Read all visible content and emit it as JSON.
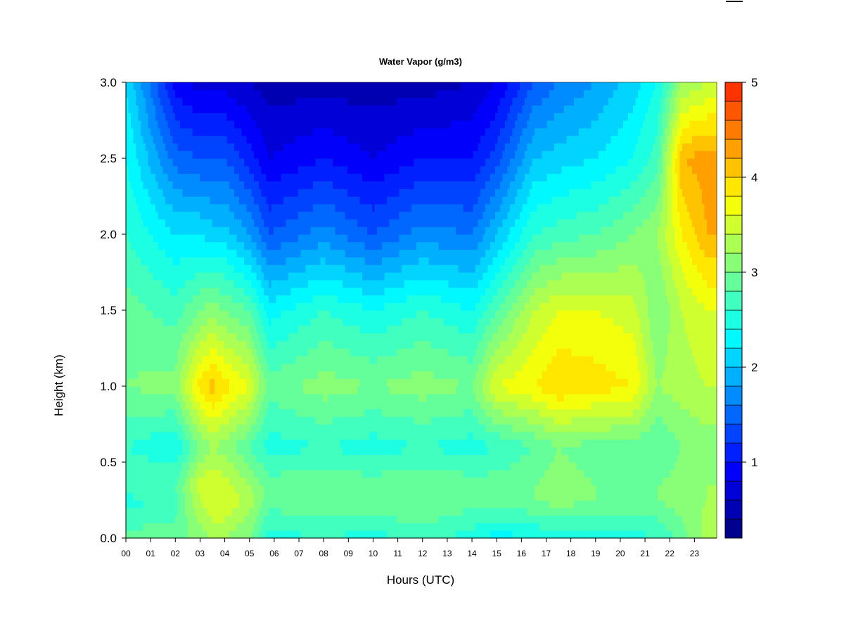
{
  "chart_data": {
    "type": "heatmap",
    "title": "Water Vapor (g/m3)",
    "xlabel": "Hours (UTC)",
    "ylabel": "Height (km)",
    "x_ticks": [
      "00",
      "01",
      "02",
      "03",
      "04",
      "05",
      "06",
      "07",
      "08",
      "09",
      "10",
      "11",
      "12",
      "13",
      "14",
      "15",
      "16",
      "17",
      "18",
      "19",
      "20",
      "21",
      "22",
      "23"
    ],
    "y_ticks": [
      "0.0",
      "0.5",
      "1.0",
      "1.5",
      "2.0",
      "2.5",
      "3.0"
    ],
    "xlim": [
      0,
      23.9
    ],
    "ylim": [
      0,
      3.0
    ],
    "colorbar": {
      "range": [
        0.2,
        5.0
      ],
      "step": 0.2,
      "ticks": [
        "1",
        "2",
        "3",
        "4",
        "5"
      ],
      "colors": [
        "#00008f",
        "#0000b3",
        "#0000d7",
        "#0000fb",
        "#0020ff",
        "#0044ff",
        "#0068ff",
        "#008cff",
        "#00b0ff",
        "#00d4ff",
        "#00f8ff",
        "#1cffe3",
        "#40ffbf",
        "#64ff9b",
        "#88ff77",
        "#acff53",
        "#d0ff2f",
        "#f4ff0b",
        "#ffe700",
        "#ffc300",
        "#ff9f00",
        "#ff7b00",
        "#ff5700",
        "#ff3300",
        "#ff0f00",
        "#eb0000",
        "#c70000",
        "#a30000",
        "#7f0000"
      ]
    },
    "grid": false,
    "field_description_values": {
      "hours": [
        0,
        2,
        3,
        3.5,
        4,
        5,
        5.8,
        8,
        10,
        12,
        14,
        15,
        16.5,
        17.5,
        19,
        20.5,
        21.5,
        22.5,
        23.5
      ],
      "heights": [
        0.0,
        0.25,
        0.35,
        0.6,
        1.0,
        1.5,
        2.0,
        2.5,
        3.0
      ],
      "values": [
        [
          2.9,
          2.5,
          2.8,
          2.6,
          3.0,
          2.9,
          2.6,
          2.4,
          2.2
        ],
        [
          2.9,
          2.7,
          2.8,
          2.4,
          3.1,
          2.7,
          2.2,
          1.5,
          0.9
        ],
        [
          3.1,
          3.4,
          3.5,
          3.0,
          3.9,
          3.0,
          2.2,
          1.4,
          0.7
        ],
        [
          3.2,
          3.6,
          3.6,
          3.2,
          4.1,
          3.1,
          2.1,
          1.4,
          0.7
        ],
        [
          3.2,
          3.6,
          3.5,
          3.1,
          3.9,
          3.0,
          2.1,
          1.4,
          0.7
        ],
        [
          3.0,
          3.3,
          3.2,
          2.8,
          3.6,
          2.8,
          1.8,
          1.1,
          0.6
        ],
        [
          2.5,
          2.9,
          2.9,
          2.5,
          2.9,
          2.3,
          1.4,
          0.8,
          0.5
        ],
        [
          2.6,
          3.0,
          3.0,
          2.6,
          3.1,
          2.6,
          1.7,
          1.0,
          0.5
        ],
        [
          2.5,
          3.0,
          2.9,
          2.5,
          3.0,
          2.4,
          1.4,
          0.8,
          0.5
        ],
        [
          2.7,
          3.0,
          3.0,
          2.6,
          3.1,
          2.6,
          1.7,
          1.0,
          0.5
        ],
        [
          2.5,
          2.9,
          2.9,
          2.5,
          3.0,
          2.4,
          1.6,
          1.0,
          0.6
        ],
        [
          2.3,
          2.9,
          2.9,
          2.6,
          3.6,
          2.8,
          2.0,
          1.3,
          0.8
        ],
        [
          2.4,
          3.0,
          3.0,
          2.8,
          3.8,
          3.4,
          2.6,
          2.0,
          1.4
        ],
        [
          2.5,
          3.1,
          3.1,
          3.0,
          4.0,
          3.6,
          2.7,
          2.1,
          1.6
        ],
        [
          2.5,
          3.0,
          3.0,
          2.9,
          3.9,
          3.6,
          2.8,
          2.2,
          1.8
        ],
        [
          2.5,
          3.0,
          3.0,
          2.9,
          3.8,
          3.5,
          3.0,
          2.4,
          2.1
        ],
        [
          2.6,
          3.0,
          3.0,
          2.8,
          3.2,
          3.0,
          3.2,
          2.7,
          2.4
        ],
        [
          2.9,
          3.1,
          3.1,
          3.0,
          3.3,
          3.4,
          3.8,
          4.2,
          3.2
        ],
        [
          3.3,
          3.2,
          3.2,
          3.1,
          3.4,
          3.6,
          4.2,
          4.3,
          3.4
        ]
      ]
    }
  }
}
